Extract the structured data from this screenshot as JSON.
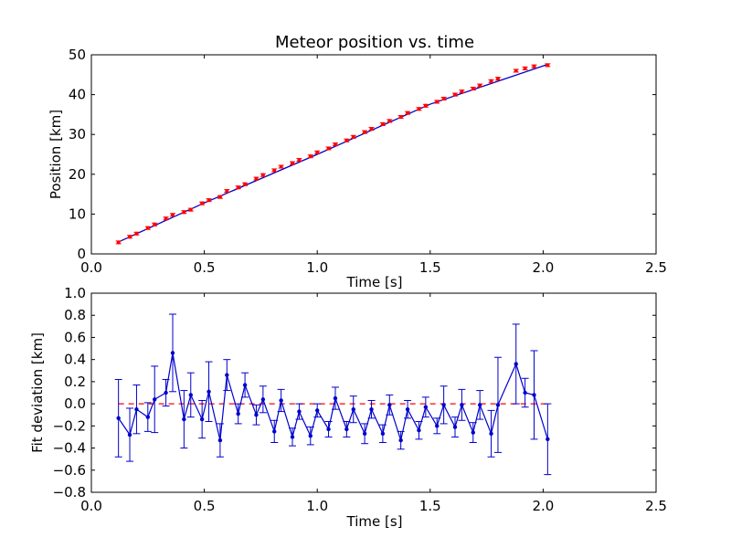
{
  "chart_data": [
    {
      "type": "scatter",
      "title": "Meteor position vs. time",
      "xlabel": "Time [s]",
      "ylabel": "Position [km]",
      "xlim": [
        0.0,
        2.5
      ],
      "ylim": [
        0,
        50
      ],
      "xticks": [
        "0.0",
        "0.5",
        "1.0",
        "1.5",
        "2.0",
        "2.5"
      ],
      "yticks": [
        "0",
        "10",
        "20",
        "30",
        "40",
        "50"
      ],
      "grid": false,
      "colors": {
        "points": "#ff0000",
        "fit": "#0000cc"
      },
      "series": [
        {
          "kind": "points-with-errorbars",
          "x": [
            0.12,
            0.17,
            0.2,
            0.25,
            0.28,
            0.33,
            0.36,
            0.41,
            0.44,
            0.49,
            0.52,
            0.57,
            0.6,
            0.65,
            0.68,
            0.73,
            0.76,
            0.81,
            0.84,
            0.89,
            0.92,
            0.97,
            1.0,
            1.05,
            1.08,
            1.13,
            1.16,
            1.21,
            1.24,
            1.29,
            1.32,
            1.37,
            1.4,
            1.45,
            1.48,
            1.53,
            1.56,
            1.61,
            1.64,
            1.69,
            1.72,
            1.77,
            1.8,
            1.88,
            1.92,
            1.96,
            2.02
          ],
          "y": [
            2.9,
            4.3,
            5.1,
            6.5,
            7.4,
            8.9,
            9.8,
            10.5,
            11.1,
            12.7,
            13.5,
            14.3,
            15.8,
            16.7,
            17.5,
            18.9,
            19.8,
            21.0,
            21.9,
            22.8,
            23.6,
            24.5,
            25.5,
            26.5,
            27.5,
            28.5,
            29.4,
            30.6,
            31.4,
            32.6,
            33.4,
            34.4,
            35.4,
            36.4,
            37.2,
            38.2,
            39.0,
            40.0,
            40.8,
            41.5,
            42.3,
            43.4,
            44.0,
            46.0,
            46.6,
            47.1,
            47.4
          ],
          "yerr": 0.35
        },
        {
          "kind": "fit-line",
          "x": [
            0.12,
            0.5,
            1.0,
            1.5,
            2.02
          ],
          "y": [
            3.0,
            12.8,
            25.0,
            37.6,
            47.6
          ]
        }
      ]
    },
    {
      "type": "line",
      "xlabel": "Time [s]",
      "ylabel": "Fit deviation [km]",
      "xlim": [
        0.0,
        2.5
      ],
      "ylim": [
        -0.8,
        1.0
      ],
      "xticks": [
        "0.0",
        "0.5",
        "1.0",
        "1.5",
        "2.0",
        "2.5"
      ],
      "yticks": [
        "−0.8",
        "−0.6",
        "−0.4",
        "−0.2",
        "0.0",
        "0.2",
        "0.4",
        "0.6",
        "0.8",
        "1.0"
      ],
      "grid": false,
      "colors": {
        "line": "#0000cc",
        "zero": "#ff0000"
      },
      "zero_line": 0.0,
      "series": [
        {
          "kind": "line-with-errorbars",
          "x": [
            0.12,
            0.17,
            0.2,
            0.25,
            0.28,
            0.33,
            0.36,
            0.41,
            0.44,
            0.49,
            0.52,
            0.57,
            0.6,
            0.65,
            0.68,
            0.73,
            0.76,
            0.81,
            0.84,
            0.89,
            0.92,
            0.97,
            1.0,
            1.05,
            1.08,
            1.13,
            1.16,
            1.21,
            1.24,
            1.29,
            1.32,
            1.37,
            1.4,
            1.45,
            1.48,
            1.53,
            1.56,
            1.61,
            1.64,
            1.69,
            1.72,
            1.77,
            1.8,
            1.88,
            1.92,
            1.96,
            2.02
          ],
          "y": [
            -0.13,
            -0.28,
            -0.05,
            -0.12,
            0.04,
            0.1,
            0.46,
            -0.14,
            0.08,
            -0.14,
            0.11,
            -0.33,
            0.26,
            -0.09,
            0.17,
            -0.1,
            0.04,
            -0.25,
            0.03,
            -0.3,
            -0.07,
            -0.29,
            -0.06,
            -0.23,
            0.05,
            -0.23,
            -0.05,
            -0.27,
            -0.05,
            -0.27,
            -0.01,
            -0.33,
            -0.05,
            -0.24,
            -0.03,
            -0.2,
            -0.01,
            -0.21,
            -0.01,
            -0.26,
            -0.01,
            -0.27,
            -0.01,
            0.36,
            0.1,
            0.08,
            -0.32
          ],
          "yerr": [
            0.35,
            0.24,
            0.22,
            0.13,
            0.3,
            0.12,
            0.35,
            0.26,
            0.2,
            0.17,
            0.27,
            0.15,
            0.14,
            0.09,
            0.11,
            0.09,
            0.12,
            0.1,
            0.1,
            0.08,
            0.07,
            0.08,
            0.06,
            0.07,
            0.1,
            0.07,
            0.12,
            0.09,
            0.08,
            0.08,
            0.09,
            0.08,
            0.08,
            0.08,
            0.09,
            0.07,
            0.17,
            0.09,
            0.14,
            0.09,
            0.13,
            0.21,
            0.43,
            0.36,
            0.13,
            0.4,
            0.32
          ]
        }
      ]
    }
  ]
}
